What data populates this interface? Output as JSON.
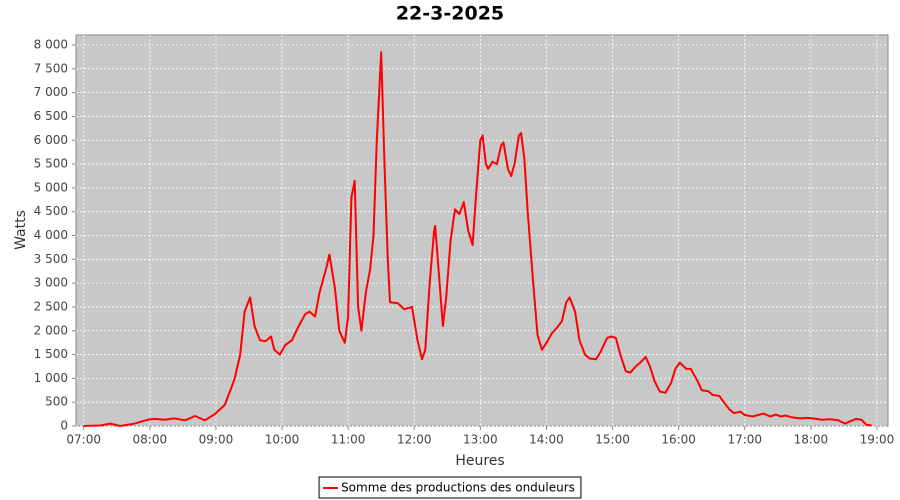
{
  "chart_data": {
    "type": "line",
    "title": "22-3-2025",
    "xlabel": "Heures",
    "ylabel": "Watts",
    "x": [
      420,
      435,
      444,
      453,
      466,
      478,
      484,
      494,
      502,
      512,
      521,
      530,
      539,
      548,
      554,
      557,
      562,
      566,
      571,
      575,
      580,
      585,
      590,
      593,
      598,
      603,
      609,
      614,
      621,
      625,
      630,
      634,
      640,
      643,
      648,
      652,
      657,
      660,
      663,
      666,
      669,
      672,
      676,
      680,
      683,
      686,
      690,
      693,
      696,
      698,
      705,
      711,
      718,
      723,
      727,
      730,
      734,
      738,
      739,
      743,
      746,
      749,
      753,
      757,
      761,
      765,
      769,
      773,
      776,
      780,
      782,
      785,
      787,
      791,
      795,
      799,
      801,
      805,
      808,
      811,
      815,
      817,
      820,
      823,
      828,
      832,
      836,
      840,
      845,
      849,
      854,
      858,
      861,
      866,
      870,
      875,
      879,
      885,
      889,
      895,
      899,
      903,
      907,
      912,
      916,
      921,
      926,
      930,
      934,
      938,
      943,
      948,
      953,
      957,
      961,
      967,
      971,
      977,
      981,
      987,
      991,
      997,
      1001,
      1006,
      1010,
      1016,
      1020,
      1027,
      1032,
      1037,
      1043,
      1048,
      1053,
      1057,
      1063,
      1070,
      1077,
      1085,
      1090,
      1097,
      1105,
      1111,
      1116,
      1121,
      1126,
      1130,
      1135
    ],
    "series": [
      {
        "name": "Somme des productions des onduleurs",
        "color": "#ff0000",
        "values": [
          0,
          10,
          50,
          0,
          50,
          130,
          150,
          130,
          160,
          120,
          210,
          120,
          250,
          440,
          800,
          1000,
          1500,
          2400,
          2700,
          2100,
          1800,
          1780,
          1880,
          1600,
          1500,
          1700,
          1800,
          2050,
          2350,
          2400,
          2300,
          2800,
          3300,
          3600,
          2900,
          2000,
          1750,
          2300,
          4800,
          5150,
          2500,
          2000,
          2800,
          3300,
          4000,
          6000,
          7850,
          5500,
          3500,
          2600,
          2580,
          2450,
          2500,
          1800,
          1400,
          1600,
          3000,
          4100,
          4200,
          3000,
          2100,
          2700,
          3900,
          4550,
          4450,
          4700,
          4100,
          3800,
          4800,
          6000,
          6100,
          5500,
          5400,
          5550,
          5500,
          5900,
          5950,
          5400,
          5250,
          5500,
          6100,
          6150,
          5600,
          4500,
          3000,
          1900,
          1600,
          1750,
          1950,
          2050,
          2200,
          2600,
          2700,
          2400,
          1800,
          1500,
          1420,
          1400,
          1550,
          1850,
          1880,
          1850,
          1500,
          1150,
          1120,
          1250,
          1350,
          1450,
          1250,
          950,
          720,
          700,
          900,
          1200,
          1330,
          1200,
          1200,
          950,
          750,
          730,
          650,
          630,
          500,
          350,
          270,
          300,
          230,
          200,
          230,
          260,
          200,
          240,
          200,
          220,
          180,
          160,
          170,
          150,
          130,
          140,
          120,
          50,
          100,
          150,
          130,
          30,
          10
        ]
      }
    ],
    "xlim": [
      413,
      1150
    ],
    "xticks": [
      {
        "value": 420,
        "label": "07:00"
      },
      {
        "value": 480,
        "label": "08:00"
      },
      {
        "value": 540,
        "label": "09:00"
      },
      {
        "value": 600,
        "label": "10:00"
      },
      {
        "value": 660,
        "label": "11:00"
      },
      {
        "value": 720,
        "label": "12:00"
      },
      {
        "value": 780,
        "label": "13:00"
      },
      {
        "value": 840,
        "label": "14:00"
      },
      {
        "value": 900,
        "label": "15:00"
      },
      {
        "value": 960,
        "label": "16:00"
      },
      {
        "value": 1020,
        "label": "17:00"
      },
      {
        "value": 1080,
        "label": "18:00"
      },
      {
        "value": 1140,
        "label": "19:00"
      }
    ],
    "ylim": [
      0,
      8210
    ],
    "yticks": [
      0,
      500,
      {
        "value": 1000,
        "label": "1 000"
      },
      {
        "value": 1500,
        "label": "1 500"
      },
      {
        "value": 2000,
        "label": "2 000"
      },
      {
        "value": 2500,
        "label": "2 500"
      },
      {
        "value": 3000,
        "label": "3 000"
      },
      {
        "value": 3500,
        "label": "3 500"
      },
      {
        "value": 4000,
        "label": "4 000"
      },
      {
        "value": 4500,
        "label": "4 500"
      },
      {
        "value": 5000,
        "label": "5 000"
      },
      {
        "value": 5500,
        "label": "5 500"
      },
      {
        "value": 6000,
        "label": "6 000"
      },
      {
        "value": 6500,
        "label": "6 500"
      },
      {
        "value": 7000,
        "label": "7 000"
      },
      {
        "value": 7500,
        "label": "7 500"
      },
      {
        "value": 8000,
        "label": "8 000"
      }
    ],
    "grid": true,
    "background": "#c8c8c8",
    "legend": "bottom"
  }
}
